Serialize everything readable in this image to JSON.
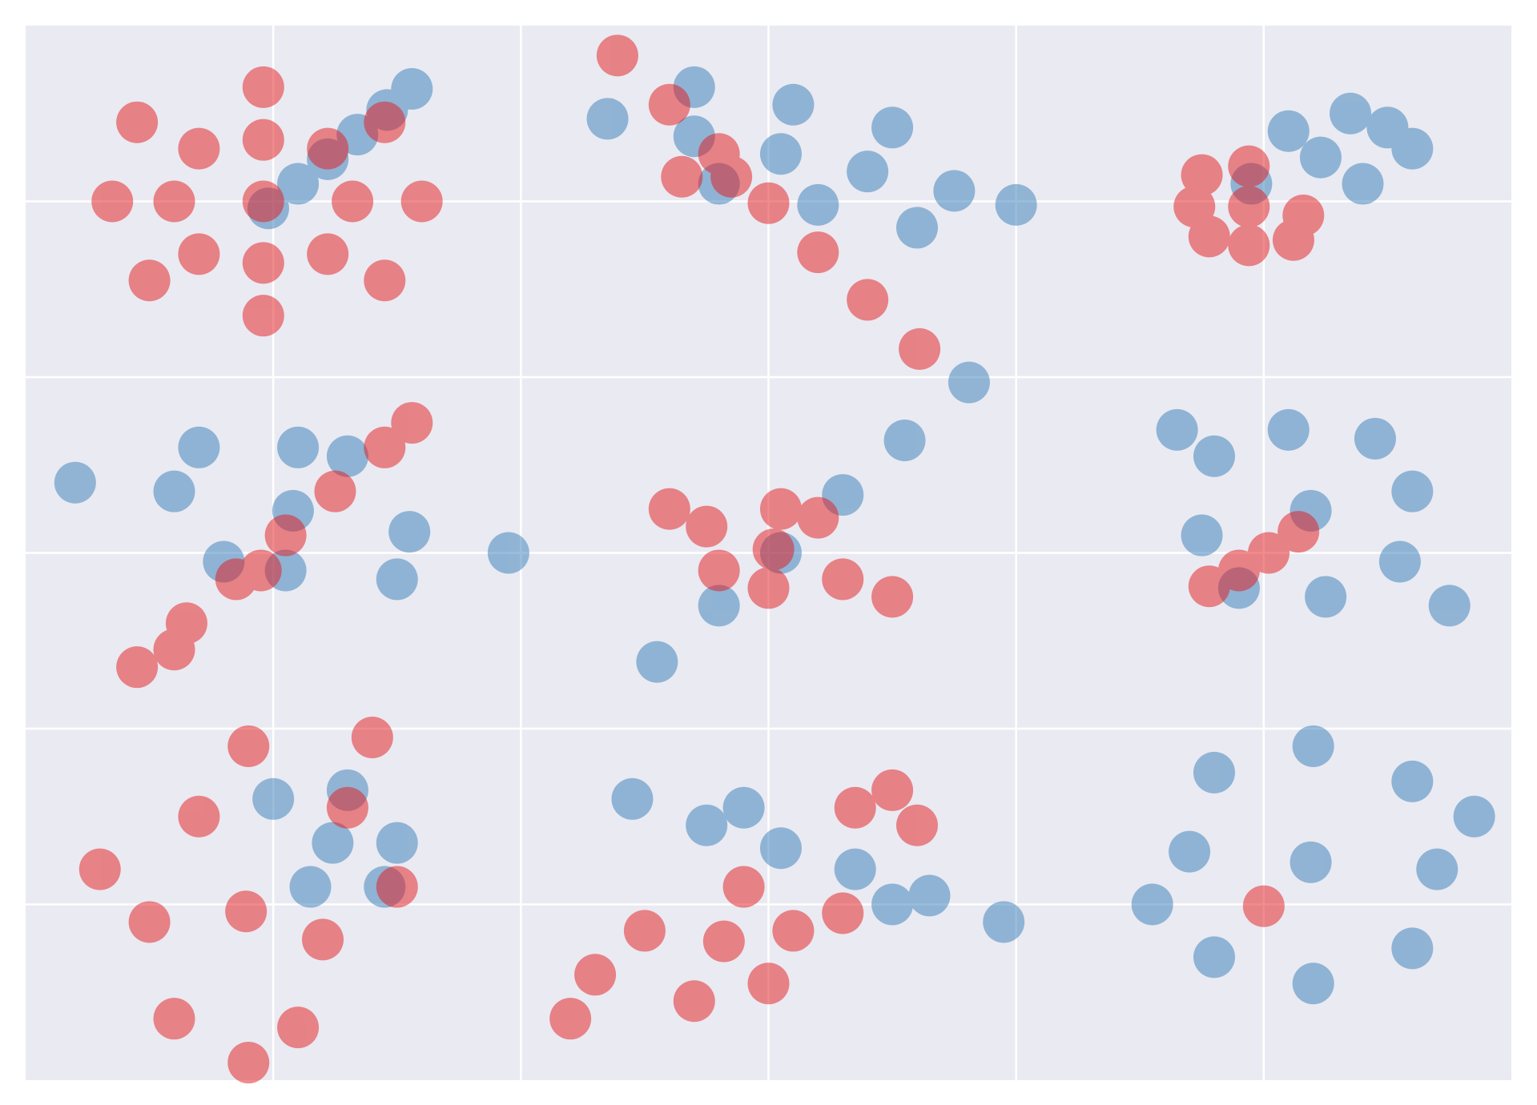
{
  "chart_data": {
    "type": "scatter",
    "xlim": [
      0,
      6
    ],
    "ylim": [
      0,
      6
    ],
    "xticks": [
      1,
      2,
      3,
      4,
      5
    ],
    "yticks": [
      1,
      2,
      3,
      4,
      5
    ],
    "grid": true,
    "show_tick_labels": false,
    "background": "#eaeaf2",
    "marker_radius": 26,
    "marker_opacity": 0.5,
    "series": [
      {
        "color": "#377eb8",
        "x": [
          0.98,
          1.1,
          1.22,
          1.34,
          1.46,
          1.56,
          2.35,
          2.7,
          3.05,
          3.4,
          3.75,
          4.0,
          2.7,
          3.1,
          3.5,
          2.8,
          3.2,
          3.6,
          5.23,
          4.95,
          5.5,
          5.1,
          5.4,
          5.35,
          5.6,
          1.08,
          0.6,
          1.55,
          0.2,
          1.95,
          0.7,
          1.3,
          0.8,
          1.5,
          1.1,
          1.05,
          2.55,
          2.8,
          3.05,
          3.3,
          3.55,
          3.81,
          5.19,
          4.8,
          5.55,
          4.75,
          5.6,
          5.1,
          5.25,
          4.9,
          5.45,
          4.65,
          5.75,
          1.0,
          1.24,
          1.45,
          1.3,
          1.15,
          1.5,
          2.45,
          2.75,
          3.05,
          3.35,
          3.65,
          3.95,
          2.9,
          3.5,
          5.19,
          4.7,
          5.7,
          5.2,
          5.2,
          4.8,
          5.6,
          4.8,
          5.6,
          4.55,
          5.85
        ],
        "values": [
          4.96,
          5.1,
          5.24,
          5.38,
          5.52,
          5.64,
          5.47,
          5.37,
          5.27,
          5.17,
          5.06,
          4.98,
          5.65,
          5.55,
          5.42,
          5.1,
          4.98,
          4.85,
          5.25,
          5.1,
          5.42,
          5.4,
          5.1,
          5.5,
          5.3,
          3.24,
          3.35,
          3.12,
          3.4,
          3.0,
          3.6,
          3.55,
          2.95,
          2.85,
          3.6,
          2.9,
          2.38,
          2.7,
          3.0,
          3.33,
          3.64,
          3.97,
          3.24,
          3.55,
          2.95,
          3.1,
          3.35,
          3.7,
          2.75,
          2.8,
          3.65,
          3.7,
          2.7,
          1.6,
          1.35,
          1.1,
          1.65,
          1.1,
          1.35,
          1.6,
          1.45,
          1.32,
          1.2,
          1.05,
          0.9,
          1.55,
          1.0,
          1.24,
          1.3,
          1.2,
          1.9,
          0.55,
          1.75,
          1.7,
          0.7,
          0.75,
          1.0,
          1.5
        ]
      },
      {
        "color": "#e41a1c",
        "x": [
          0.96,
          0.6,
          1.32,
          0.96,
          0.96,
          0.7,
          1.22,
          0.7,
          1.22,
          0.35,
          1.6,
          0.96,
          0.96,
          0.5,
          1.45,
          0.45,
          1.45,
          2.39,
          2.6,
          2.8,
          3.0,
          3.2,
          3.4,
          3.61,
          2.65,
          2.85,
          4.94,
          4.72,
          5.16,
          4.94,
          4.94,
          4.75,
          5.12,
          4.78,
          0.45,
          0.65,
          0.85,
          1.05,
          1.25,
          1.45,
          1.56,
          0.6,
          0.95,
          3.02,
          2.6,
          2.75,
          3.3,
          3.5,
          2.8,
          3.2,
          3.0,
          3.05,
          4.78,
          4.9,
          5.02,
          5.14,
          0.89,
          0.5,
          1.2,
          0.7,
          1.3,
          0.6,
          1.1,
          0.3,
          1.5,
          0.9,
          1.4,
          0.9,
          2.82,
          2.3,
          2.5,
          3.1,
          3.3,
          2.7,
          3.0,
          2.9,
          2.2,
          3.35,
          3.6,
          3.5,
          5.0
        ],
        "values": [
          5.0,
          5.0,
          5.0,
          5.35,
          4.65,
          5.3,
          5.3,
          4.7,
          4.7,
          5.0,
          5.0,
          5.65,
          4.35,
          4.55,
          5.45,
          5.45,
          4.55,
          5.83,
          5.55,
          5.27,
          4.99,
          4.71,
          4.44,
          4.16,
          5.14,
          5.14,
          4.97,
          4.97,
          4.92,
          5.2,
          4.75,
          5.15,
          4.78,
          4.8,
          2.35,
          2.6,
          2.85,
          3.1,
          3.35,
          3.6,
          3.74,
          2.45,
          2.9,
          3.02,
          3.25,
          3.15,
          2.85,
          2.75,
          2.9,
          3.2,
          2.8,
          3.25,
          2.81,
          2.9,
          3.0,
          3.12,
          0.96,
          0.9,
          0.8,
          1.5,
          1.55,
          0.35,
          0.3,
          1.2,
          1.1,
          1.9,
          1.95,
          0.1,
          0.79,
          0.6,
          0.85,
          0.85,
          0.95,
          0.45,
          0.55,
          1.1,
          0.35,
          1.55,
          1.45,
          1.65,
          0.99
        ]
      }
    ]
  }
}
